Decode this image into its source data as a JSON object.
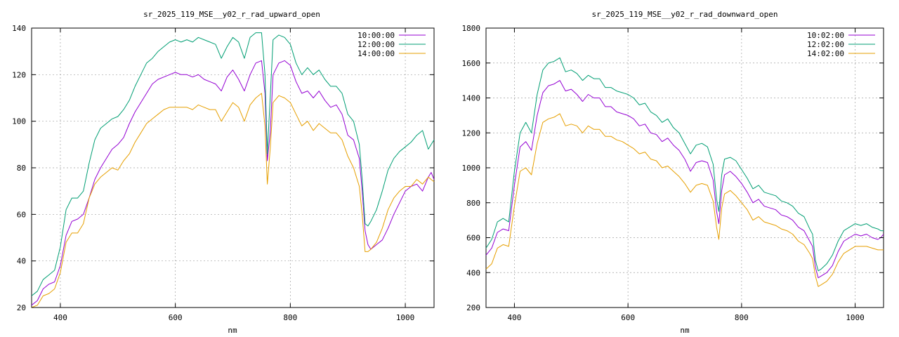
{
  "chart_data": [
    {
      "type": "line",
      "title": "sr_2025_119_MSE__y02_r_rad_upward_open",
      "xlabel": "nm",
      "ylabel": "",
      "xlim": [
        350,
        1050
      ],
      "ylim": [
        20,
        140
      ],
      "xticks": [
        400,
        600,
        800,
        1000
      ],
      "yticks": [
        20,
        40,
        60,
        80,
        100,
        120,
        140
      ],
      "grid": true,
      "legend_position": "top-right",
      "series": [
        {
          "name": "10:00:00",
          "color": "#9400d3",
          "x": [
            350,
            360,
            370,
            380,
            390,
            400,
            410,
            420,
            430,
            440,
            450,
            460,
            470,
            480,
            490,
            500,
            510,
            520,
            530,
            540,
            550,
            560,
            570,
            580,
            590,
            600,
            610,
            620,
            630,
            640,
            650,
            660,
            670,
            680,
            690,
            700,
            710,
            720,
            730,
            740,
            750,
            756,
            760,
            765,
            770,
            780,
            790,
            800,
            810,
            820,
            830,
            840,
            850,
            860,
            870,
            880,
            890,
            900,
            910,
            915,
            920,
            925,
            930,
            935,
            940,
            950,
            960,
            970,
            980,
            990,
            1000,
            1010,
            1020,
            1030,
            1040,
            1045,
            1050
          ],
          "values": [
            21,
            23,
            28,
            30,
            31,
            38,
            51,
            57,
            58,
            60,
            67,
            75,
            80,
            84,
            88,
            90,
            93,
            99,
            104,
            108,
            112,
            116,
            118,
            119,
            120,
            121,
            120,
            120,
            119,
            120,
            118,
            117,
            116,
            113,
            119,
            122,
            118,
            113,
            120,
            125,
            126,
            112,
            83,
            95,
            120,
            125,
            126,
            124,
            117,
            112,
            113,
            110,
            113,
            109,
            106,
            107,
            103,
            94,
            92,
            88,
            84,
            70,
            53,
            47,
            45,
            47,
            49,
            54,
            60,
            65,
            70,
            72,
            73,
            70,
            76,
            78,
            75
          ]
        },
        {
          "name": "12:00:00",
          "color": "#009e73",
          "x": [
            350,
            360,
            370,
            380,
            390,
            400,
            410,
            420,
            430,
            440,
            450,
            460,
            470,
            480,
            490,
            500,
            510,
            520,
            530,
            540,
            550,
            560,
            570,
            580,
            590,
            600,
            610,
            620,
            630,
            640,
            650,
            660,
            670,
            680,
            690,
            700,
            710,
            720,
            730,
            740,
            750,
            756,
            760,
            765,
            770,
            780,
            790,
            800,
            810,
            820,
            830,
            840,
            850,
            860,
            870,
            880,
            890,
            900,
            910,
            915,
            920,
            925,
            930,
            935,
            940,
            950,
            960,
            970,
            980,
            990,
            1000,
            1010,
            1020,
            1030,
            1040,
            1045,
            1050
          ],
          "values": [
            25,
            27,
            32,
            34,
            36,
            46,
            62,
            67,
            67,
            70,
            82,
            92,
            97,
            99,
            101,
            102,
            105,
            109,
            115,
            120,
            125,
            127,
            130,
            132,
            134,
            135,
            134,
            135,
            134,
            136,
            135,
            134,
            133,
            127,
            132,
            136,
            134,
            127,
            136,
            138,
            138,
            120,
            86,
            110,
            135,
            137,
            136,
            133,
            125,
            120,
            123,
            120,
            122,
            118,
            115,
            115,
            112,
            103,
            100,
            95,
            90,
            75,
            56,
            55,
            57,
            62,
            70,
            79,
            84,
            87,
            89,
            91,
            94,
            96,
            88,
            90,
            92
          ]
        },
        {
          "name": "14:00:00",
          "color": "#e69f00",
          "x": [
            350,
            360,
            370,
            380,
            390,
            400,
            410,
            420,
            430,
            440,
            450,
            460,
            470,
            480,
            490,
            500,
            510,
            520,
            530,
            540,
            550,
            560,
            570,
            580,
            590,
            600,
            610,
            620,
            630,
            640,
            650,
            660,
            670,
            680,
            690,
            700,
            710,
            720,
            730,
            740,
            750,
            756,
            760,
            765,
            770,
            780,
            790,
            800,
            810,
            820,
            830,
            840,
            850,
            860,
            870,
            880,
            890,
            900,
            910,
            915,
            920,
            925,
            930,
            935,
            940,
            950,
            960,
            970,
            980,
            990,
            1000,
            1010,
            1020,
            1030,
            1040,
            1045,
            1050
          ],
          "values": [
            20,
            21,
            25,
            26,
            28,
            35,
            48,
            52,
            52,
            56,
            67,
            73,
            76,
            78,
            80,
            79,
            83,
            86,
            91,
            95,
            99,
            101,
            103,
            105,
            106,
            106,
            106,
            106,
            105,
            107,
            106,
            105,
            105,
            100,
            104,
            108,
            106,
            100,
            107,
            110,
            112,
            98,
            73,
            88,
            108,
            111,
            110,
            108,
            103,
            98,
            100,
            96,
            99,
            97,
            95,
            95,
            92,
            85,
            80,
            76,
            72,
            60,
            44,
            44,
            45,
            48,
            54,
            62,
            67,
            70,
            72,
            72,
            75,
            73,
            76,
            75,
            74
          ]
        }
      ]
    },
    {
      "type": "line",
      "title": "sr_2025_119_MSE__y02_r_rad_downward_open",
      "xlabel": "nm",
      "ylabel": "",
      "xlim": [
        350,
        1050
      ],
      "ylim": [
        200,
        1800
      ],
      "xticks": [
        400,
        600,
        800,
        1000
      ],
      "yticks": [
        200,
        400,
        600,
        800,
        1000,
        1200,
        1400,
        1600,
        1800
      ],
      "grid": true,
      "legend_position": "top-right",
      "series": [
        {
          "name": "10:02:00",
          "color": "#9400d3",
          "x": [
            350,
            360,
            370,
            380,
            390,
            400,
            410,
            420,
            430,
            440,
            450,
            460,
            470,
            480,
            490,
            500,
            510,
            520,
            530,
            540,
            550,
            560,
            570,
            580,
            590,
            600,
            610,
            620,
            630,
            640,
            650,
            660,
            670,
            680,
            690,
            700,
            710,
            720,
            730,
            740,
            750,
            756,
            760,
            765,
            770,
            780,
            790,
            800,
            810,
            820,
            830,
            840,
            850,
            860,
            870,
            880,
            890,
            900,
            910,
            920,
            925,
            930,
            935,
            940,
            950,
            960,
            970,
            980,
            990,
            1000,
            1010,
            1020,
            1030,
            1040,
            1045,
            1050
          ],
          "values": [
            500,
            540,
            630,
            650,
            640,
            900,
            1120,
            1150,
            1100,
            1300,
            1430,
            1470,
            1480,
            1500,
            1440,
            1450,
            1420,
            1380,
            1420,
            1400,
            1400,
            1350,
            1350,
            1320,
            1310,
            1300,
            1280,
            1240,
            1250,
            1200,
            1190,
            1150,
            1170,
            1130,
            1100,
            1050,
            980,
            1030,
            1040,
            1030,
            930,
            750,
            680,
            870,
            960,
            980,
            950,
            910,
            860,
            800,
            820,
            780,
            770,
            760,
            730,
            720,
            700,
            660,
            640,
            580,
            550,
            430,
            370,
            380,
            400,
            440,
            520,
            580,
            600,
            620,
            610,
            620,
            600,
            590,
            600,
            620
          ]
        },
        {
          "name": "12:02:00",
          "color": "#009e73",
          "x": [
            350,
            360,
            370,
            380,
            390,
            400,
            410,
            420,
            430,
            440,
            450,
            460,
            470,
            480,
            490,
            500,
            510,
            520,
            530,
            540,
            550,
            560,
            570,
            580,
            590,
            600,
            610,
            620,
            630,
            640,
            650,
            660,
            670,
            680,
            690,
            700,
            710,
            720,
            730,
            740,
            750,
            756,
            760,
            765,
            770,
            780,
            790,
            800,
            810,
            820,
            830,
            840,
            850,
            860,
            870,
            880,
            890,
            900,
            910,
            920,
            925,
            930,
            935,
            940,
            950,
            960,
            970,
            980,
            990,
            1000,
            1010,
            1020,
            1030,
            1040,
            1045,
            1050
          ],
          "values": [
            540,
            590,
            690,
            710,
            690,
            980,
            1200,
            1260,
            1200,
            1420,
            1560,
            1600,
            1610,
            1630,
            1550,
            1560,
            1540,
            1500,
            1530,
            1510,
            1510,
            1460,
            1460,
            1440,
            1430,
            1420,
            1400,
            1360,
            1370,
            1320,
            1300,
            1260,
            1280,
            1230,
            1200,
            1140,
            1080,
            1130,
            1140,
            1120,
            1020,
            820,
            750,
            960,
            1050,
            1060,
            1040,
            990,
            940,
            880,
            900,
            860,
            850,
            840,
            810,
            800,
            780,
            740,
            720,
            650,
            620,
            470,
            410,
            420,
            450,
            500,
            580,
            640,
            660,
            680,
            670,
            680,
            660,
            650,
            640,
            640
          ]
        },
        {
          "name": "14:02:00",
          "color": "#e69f00",
          "x": [
            350,
            360,
            370,
            380,
            390,
            400,
            410,
            420,
            430,
            440,
            450,
            460,
            470,
            480,
            490,
            500,
            510,
            520,
            530,
            540,
            550,
            560,
            570,
            580,
            590,
            600,
            610,
            620,
            630,
            640,
            650,
            660,
            670,
            680,
            690,
            700,
            710,
            720,
            730,
            740,
            750,
            756,
            760,
            765,
            770,
            780,
            790,
            800,
            810,
            820,
            830,
            840,
            850,
            860,
            870,
            880,
            890,
            900,
            910,
            920,
            925,
            930,
            935,
            940,
            950,
            960,
            970,
            980,
            990,
            1000,
            1010,
            1020,
            1030,
            1040,
            1045,
            1050
          ],
          "values": [
            420,
            450,
            540,
            560,
            550,
            780,
            980,
            1000,
            960,
            1140,
            1260,
            1280,
            1290,
            1310,
            1240,
            1250,
            1240,
            1200,
            1240,
            1220,
            1220,
            1180,
            1180,
            1160,
            1150,
            1130,
            1110,
            1080,
            1090,
            1050,
            1040,
            1000,
            1010,
            980,
            950,
            910,
            860,
            900,
            910,
            900,
            810,
            660,
            590,
            770,
            850,
            870,
            840,
            800,
            760,
            700,
            720,
            690,
            680,
            670,
            650,
            640,
            620,
            580,
            560,
            510,
            480,
            380,
            320,
            330,
            350,
            390,
            460,
            510,
            530,
            550,
            550,
            550,
            540,
            530,
            530,
            530
          ]
        }
      ]
    }
  ]
}
